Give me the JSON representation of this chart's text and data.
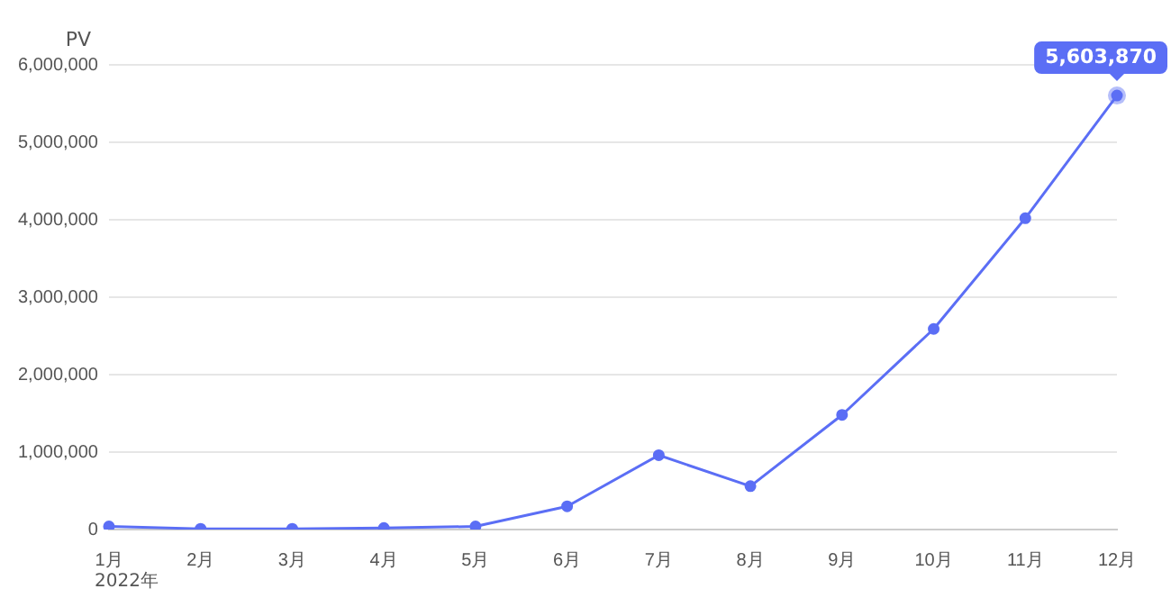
{
  "chart_data": {
    "type": "line",
    "ylabel": "PV",
    "categories": [
      "1月",
      "2月",
      "3月",
      "4月",
      "5月",
      "6月",
      "7月",
      "8月",
      "9月",
      "10月",
      "11月",
      "12月"
    ],
    "series": [
      {
        "color": "#5b6ef5",
        "values": [
          40000,
          10000,
          10000,
          20000,
          40000,
          300000,
          960000,
          560000,
          1480000,
          2590000,
          4020000,
          5603870
        ],
        "value_labels": [
          null,
          null,
          null,
          null,
          null,
          null,
          null,
          null,
          null,
          null,
          null,
          "5,603,870"
        ]
      }
    ],
    "ylim": [
      0,
      6000000
    ],
    "yticks": [
      {
        "value": 0,
        "label": "0"
      },
      {
        "value": 1000000,
        "label": "1,000,000"
      },
      {
        "value": 2000000,
        "label": "2,000,000"
      },
      {
        "value": 3000000,
        "label": "3,000,000"
      },
      {
        "value": 4000000,
        "label": "4,000,000"
      },
      {
        "value": 5000000,
        "label": "5,000,000"
      },
      {
        "value": 6000000,
        "label": "6,000,000"
      }
    ],
    "grid": "y",
    "legend": false,
    "marker": "circle",
    "line_style": "solid",
    "annotations": [
      "2022年"
    ]
  }
}
